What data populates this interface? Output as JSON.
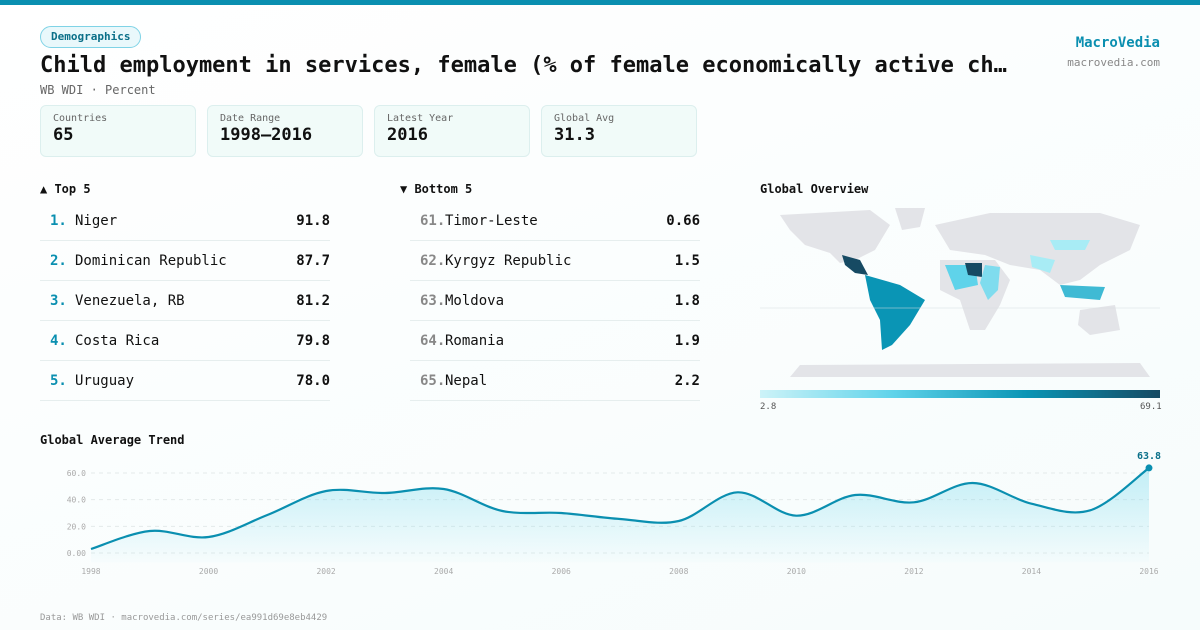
{
  "header": {
    "badge": "Demographics",
    "title": "Child employment in services, female (% of female economically active ch…",
    "subtitle": "WB WDI · Percent",
    "brand": "MacroVedia",
    "brand_url": "macrovedia.com"
  },
  "stats": [
    {
      "label": "Countries",
      "value": "65"
    },
    {
      "label": "Date Range",
      "value": "1998–2016"
    },
    {
      "label": "Latest Year",
      "value": "2016"
    },
    {
      "label": "Global Avg",
      "value": "31.3"
    }
  ],
  "top": {
    "title": "▲ Top 5",
    "items": [
      {
        "rank": "1.",
        "name": "Niger",
        "value": "91.8"
      },
      {
        "rank": "2.",
        "name": "Dominican Republic",
        "value": "87.7"
      },
      {
        "rank": "3.",
        "name": "Venezuela, RB",
        "value": "81.2"
      },
      {
        "rank": "4.",
        "name": "Costa Rica",
        "value": "79.8"
      },
      {
        "rank": "5.",
        "name": "Uruguay",
        "value": "78.0"
      }
    ]
  },
  "bottom": {
    "title": "▼ Bottom 5",
    "items": [
      {
        "rank": "61.",
        "name": "Timor-Leste",
        "value": "0.66"
      },
      {
        "rank": "62.",
        "name": "Kyrgyz Republic",
        "value": "1.5"
      },
      {
        "rank": "63.",
        "name": "Moldova",
        "value": "1.8"
      },
      {
        "rank": "64.",
        "name": "Romania",
        "value": "1.9"
      },
      {
        "rank": "65.",
        "name": "Nepal",
        "value": "2.2"
      }
    ]
  },
  "map": {
    "title": "Global Overview",
    "legend_min": "2.8",
    "legend_max": "69.1"
  },
  "colors": {
    "accent": "#0a8fb0",
    "line": "#0a8fb0"
  },
  "chart_data": {
    "type": "area",
    "title": "Global Average Trend",
    "x": [
      1998,
      1999,
      2000,
      2001,
      2002,
      2003,
      2004,
      2005,
      2006,
      2007,
      2008,
      2009,
      2010,
      2011,
      2012,
      2013,
      2014,
      2015,
      2016
    ],
    "values": [
      3,
      16.5,
      12,
      28.5,
      46.5,
      45,
      48,
      31.5,
      30,
      25.5,
      24,
      45.5,
      28,
      43.5,
      38,
      52.5,
      37,
      32,
      63.8
    ],
    "y_ticks": [
      "0.00",
      "20.0",
      "40.0",
      "60.0"
    ],
    "x_ticks": [
      "1998",
      "2000",
      "2002",
      "2004",
      "2006",
      "2008",
      "2010",
      "2012",
      "2014",
      "2016"
    ],
    "ylim": [
      0,
      60
    ],
    "grid": true,
    "last_label": "63.8"
  },
  "footer": "Data: WB WDI · macrovedia.com/series/ea991d69e8eb4429"
}
